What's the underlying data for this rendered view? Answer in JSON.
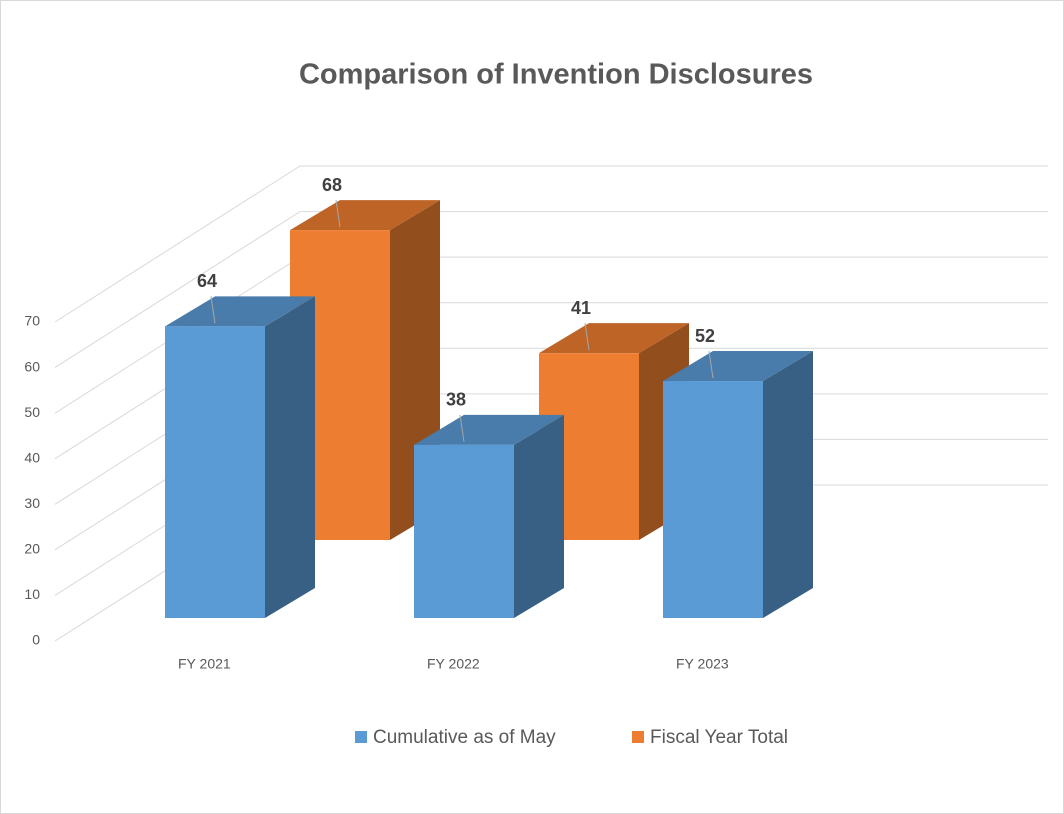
{
  "chart_data": {
    "type": "bar3d",
    "title": "Comparison of Invention Disclosures",
    "categories": [
      "FY 2021",
      "FY 2022",
      "FY 2023"
    ],
    "series": [
      {
        "name": "Cumulative as of May",
        "color": "#5b9bd5",
        "values": [
          64,
          38,
          52
        ]
      },
      {
        "name": "Fiscal Year Total",
        "color": "#ed7d31",
        "values": [
          68,
          41,
          null
        ]
      }
    ],
    "ylim": [
      0,
      70
    ],
    "yticks": [
      0,
      10,
      20,
      30,
      40,
      50,
      60,
      70
    ],
    "grid": true,
    "legend": "bottom"
  }
}
